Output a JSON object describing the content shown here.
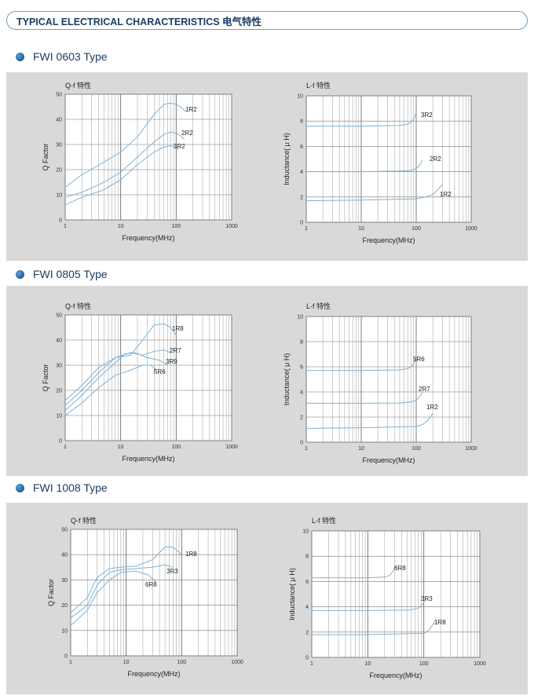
{
  "header": {
    "title": "TYPICAL ELECTRICAL CHARACTERISTICS 电气特性"
  },
  "sections": [
    {
      "title": "FWI 0603 Type",
      "charts": [
        {
          "type": "line",
          "title": "Q-f 特性",
          "xlabel": "Frequency(MHz)",
          "ylabel": "Q Factor",
          "xscale": "log",
          "xlim": [
            1,
            1000
          ],
          "ylim": [
            0,
            50
          ],
          "xticks": [
            1,
            10,
            100,
            1000
          ],
          "yticks": [
            0,
            10,
            20,
            30,
            40,
            50
          ],
          "grid": true,
          "series": [
            {
              "name": "1R2",
              "x": [
                1,
                2,
                5,
                10,
                20,
                40,
                60,
                80,
                100,
                120,
                150
              ],
              "y": [
                13,
                18,
                23,
                27,
                33,
                42,
                46,
                46.5,
                46,
                45,
                43
              ]
            },
            {
              "name": "2R2",
              "x": [
                1,
                2,
                5,
                10,
                20,
                40,
                60,
                80,
                100,
                120,
                140
              ],
              "y": [
                9,
                11,
                15,
                19,
                25,
                31,
                34,
                35,
                34.5,
                33.5,
                32
              ]
            },
            {
              "name": "3R2",
              "x": [
                1,
                2,
                5,
                10,
                20,
                40,
                60,
                80,
                100,
                110
              ],
              "y": [
                6,
                9,
                12,
                16,
                22,
                27,
                29,
                29.5,
                29,
                28
              ]
            }
          ]
        },
        {
          "type": "line",
          "title": "L-f 特性",
          "xlabel": "Frequency(MHz)",
          "ylabel": "Inductance( μ H)",
          "xscale": "log",
          "xlim": [
            1,
            1000
          ],
          "ylim": [
            0,
            10
          ],
          "xticks": [
            1,
            10,
            100,
            1000
          ],
          "yticks": [
            0,
            2,
            4,
            6,
            8,
            10
          ],
          "grid": true,
          "series": [
            {
              "name": "3R2",
              "x": [
                1,
                10,
                50,
                70,
                85,
                95,
                100
              ],
              "y": [
                7.6,
                7.6,
                7.65,
                7.75,
                8.0,
                8.4,
                8.7
              ]
            },
            {
              "name": "2R2",
              "x": [
                1,
                10,
                50,
                80,
                100,
                120,
                130
              ],
              "y": [
                4.0,
                4.0,
                4.05,
                4.1,
                4.25,
                4.6,
                4.9
              ]
            },
            {
              "name": "1R2",
              "x": [
                1,
                10,
                100,
                150,
                200,
                250,
                300
              ],
              "y": [
                1.7,
                1.75,
                1.85,
                2.0,
                2.2,
                2.6,
                3.0
              ]
            }
          ]
        }
      ]
    },
    {
      "title": "FWI 0805 Type",
      "charts": [
        {
          "type": "line",
          "title": "Q-f 特性",
          "xlabel": "Frequency(MHz)",
          "ylabel": "Q Factor",
          "xscale": "log",
          "xlim": [
            1,
            1000
          ],
          "ylim": [
            0,
            50
          ],
          "xticks": [
            1,
            10,
            100,
            1000
          ],
          "yticks": [
            0,
            10,
            20,
            30,
            40,
            50
          ],
          "grid": true,
          "series": [
            {
              "name": "1R8",
              "x": [
                1,
                2,
                4,
                8,
                15,
                25,
                40,
                60,
                80,
                100
              ],
              "y": [
                16,
                22,
                29,
                33,
                34,
                40,
                46,
                46.5,
                45,
                42
              ]
            },
            {
              "name": "2R7",
              "x": [
                1,
                2,
                4,
                8,
                15,
                25,
                40,
                60,
                80
              ],
              "y": [
                14,
                20,
                27,
                33,
                35,
                34,
                35.5,
                36,
                35
              ]
            },
            {
              "name": "3R9",
              "x": [
                1,
                2,
                4,
                8,
                12,
                18,
                30,
                50,
                70
              ],
              "y": [
                12,
                18,
                25,
                31,
                34.5,
                35,
                33,
                32,
                30
              ]
            },
            {
              "name": "5R6",
              "x": [
                1,
                2,
                4,
                8,
                15,
                25,
                35,
                45
              ],
              "y": [
                10,
                15,
                21,
                26,
                28,
                30,
                30,
                28
              ]
            }
          ]
        },
        {
          "type": "line",
          "title": "L-f 特性",
          "xlabel": "Frequency(MHz)",
          "ylabel": "Inductance( μ H)",
          "xscale": "log",
          "xlim": [
            1,
            1000
          ],
          "ylim": [
            0,
            10
          ],
          "xticks": [
            1,
            10,
            100,
            1000
          ],
          "yticks": [
            0,
            2,
            4,
            6,
            8,
            10
          ],
          "grid": true,
          "series": [
            {
              "name": "5R6",
              "x": [
                1,
                10,
                50,
                70,
                85,
                95,
                100
              ],
              "y": [
                5.7,
                5.7,
                5.75,
                5.85,
                6.1,
                6.5,
                6.8
              ]
            },
            {
              "name": "2R7",
              "x": [
                1,
                10,
                50,
                80,
                100,
                120,
                130
              ],
              "y": [
                3.1,
                3.1,
                3.12,
                3.2,
                3.35,
                3.7,
                4.0
              ]
            },
            {
              "name": "1R2",
              "x": [
                1,
                10,
                100,
                130,
                160,
                180,
                200
              ],
              "y": [
                1.1,
                1.15,
                1.25,
                1.4,
                1.7,
                2.0,
                2.3
              ]
            }
          ]
        }
      ]
    },
    {
      "title": "FWI 1008 Type",
      "charts": [
        {
          "type": "line",
          "title": "Q-f 特性",
          "xlabel": "Frequency(MHz)",
          "ylabel": "Q Factor",
          "xscale": "log",
          "xlim": [
            1,
            1000
          ],
          "ylim": [
            0,
            50
          ],
          "xticks": [
            1,
            10,
            100,
            1000
          ],
          "yticks": [
            0,
            10,
            20,
            30,
            40,
            50
          ],
          "grid": true,
          "series": [
            {
              "name": "1R8",
              "x": [
                1,
                2,
                3,
                5,
                8,
                15,
                30,
                50,
                70,
                100
              ],
              "y": [
                17,
                23,
                31,
                34.5,
                35,
                35.5,
                38,
                43,
                43,
                40
              ]
            },
            {
              "name": "3R3",
              "x": [
                1,
                2,
                3,
                5,
                8,
                15,
                30,
                50,
                70
              ],
              "y": [
                15,
                20,
                28,
                33,
                34,
                34.5,
                35,
                36,
                35
              ]
            },
            {
              "name": "6R8",
              "x": [
                1,
                2,
                3,
                5,
                8,
                15,
                25,
                35
              ],
              "y": [
                12,
                18,
                25,
                30,
                33,
                33.5,
                32,
                29
              ]
            }
          ]
        },
        {
          "type": "line",
          "title": "L-f 特性",
          "xlabel": "Frequency(MHz)",
          "ylabel": "Inductance( μ H)",
          "xscale": "log",
          "xlim": [
            1,
            1000
          ],
          "ylim": [
            0,
            10
          ],
          "xticks": [
            1,
            10,
            100,
            1000
          ],
          "yticks": [
            0,
            2,
            4,
            6,
            8,
            10
          ],
          "grid": true,
          "series": [
            {
              "name": "6R8",
              "x": [
                1,
                10,
                20,
                25,
                28,
                32
              ],
              "y": [
                6.3,
                6.3,
                6.35,
                6.5,
                6.8,
                7.2
              ]
            },
            {
              "name": "3R3",
              "x": [
                1,
                10,
                60,
                80,
                95,
                105
              ],
              "y": [
                3.7,
                3.7,
                3.75,
                3.9,
                4.2,
                4.5
              ]
            },
            {
              "name": "1R8",
              "x": [
                1,
                10,
                100,
                120,
                140,
                160
              ],
              "y": [
                1.8,
                1.8,
                1.9,
                2.1,
                2.5,
                2.9
              ]
            }
          ]
        }
      ]
    }
  ]
}
